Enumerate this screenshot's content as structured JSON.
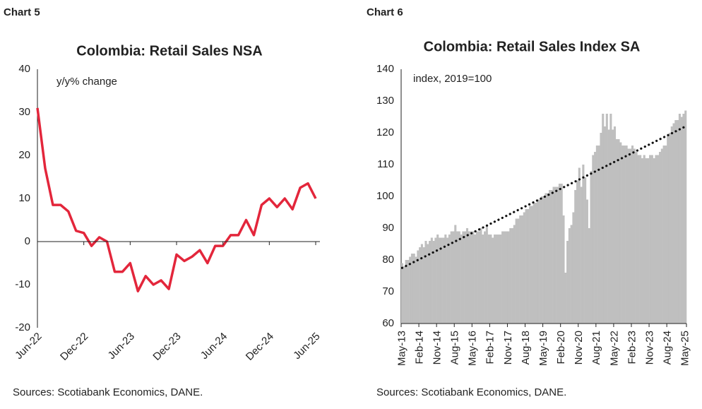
{
  "chart_data": [
    {
      "type": "line",
      "chart_label": "Chart 5",
      "title": "Colombia: Retail Sales NSA",
      "note": "y/y% change",
      "source": "Sources: Scotiabank Economics, DANE.",
      "categories": [
        "Jun-22",
        null,
        null,
        null,
        null,
        null,
        "Dec-22",
        null,
        null,
        null,
        null,
        null,
        "Jun-23",
        null,
        null,
        null,
        null,
        null,
        "Dec-23",
        null,
        null,
        null,
        null,
        null,
        "Jun-24",
        null,
        null,
        null,
        null,
        null,
        "Dec-24",
        null,
        null,
        null,
        null,
        null,
        "Jun-25"
      ],
      "series": [
        {
          "color": "#e3263b",
          "values": [
            31,
            17,
            8.5,
            8.5,
            7,
            2.5,
            2,
            -1,
            1,
            0,
            -7,
            -7,
            -5,
            -11.5,
            -8,
            -10,
            -9,
            -11,
            -3,
            -4.5,
            -3.5,
            -2,
            -5,
            -1,
            -1,
            1.5,
            1.5,
            5,
            1.5,
            8.5,
            10,
            8,
            10,
            7.5,
            12.5,
            13.5,
            10
          ]
        }
      ],
      "ylim": [
        -20,
        40
      ],
      "yticks": [
        -20,
        -10,
        0,
        10,
        20,
        30,
        40
      ],
      "grid": false
    },
    {
      "type": "bar",
      "chart_label": "Chart 6",
      "title": "Colombia: Retail Sales Index SA",
      "note": "index, 2019=100",
      "source": "Sources: Scotiabank Economics, DANE.",
      "categories": [
        "May-13",
        null,
        null,
        null,
        null,
        null,
        null,
        null,
        null,
        "Feb-14",
        null,
        null,
        null,
        null,
        null,
        null,
        null,
        null,
        "Nov-14",
        null,
        null,
        null,
        null,
        null,
        null,
        null,
        null,
        "Aug-15",
        null,
        null,
        null,
        null,
        null,
        null,
        null,
        null,
        "May-16",
        null,
        null,
        null,
        null,
        null,
        null,
        null,
        null,
        "Feb-17",
        null,
        null,
        null,
        null,
        null,
        null,
        null,
        null,
        "Nov-17",
        null,
        null,
        null,
        null,
        null,
        null,
        null,
        null,
        "Aug-18",
        null,
        null,
        null,
        null,
        null,
        null,
        null,
        null,
        "May-19",
        null,
        null,
        null,
        null,
        null,
        null,
        null,
        null,
        "Feb-20",
        null,
        null,
        null,
        null,
        null,
        null,
        null,
        null,
        "Nov-20",
        null,
        null,
        null,
        null,
        null,
        null,
        null,
        null,
        "Aug-21",
        null,
        null,
        null,
        null,
        null,
        null,
        null,
        null,
        "May-22",
        null,
        null,
        null,
        null,
        null,
        null,
        null,
        null,
        "Feb-23",
        null,
        null,
        null,
        null,
        null,
        null,
        null,
        null,
        "Nov-23",
        null,
        null,
        null,
        null,
        null,
        null,
        null,
        null,
        "Aug-24",
        null,
        null,
        null,
        null,
        null,
        null,
        null,
        null,
        "May-25"
      ],
      "series": [
        {
          "color": "#bfbfbf",
          "values": [
            79,
            78,
            80,
            80,
            81,
            82,
            82,
            81,
            83,
            84,
            85,
            84,
            86,
            85,
            86,
            87,
            86,
            87,
            88,
            87,
            87,
            87,
            88,
            87,
            88,
            89,
            89,
            91,
            89,
            89,
            88,
            89,
            89,
            90,
            89,
            89,
            89,
            88,
            89,
            89,
            90,
            88,
            89,
            91,
            88,
            88,
            87,
            88,
            88,
            88,
            88,
            89,
            89,
            89,
            89,
            90,
            90,
            91,
            93,
            93,
            94,
            94,
            95,
            96,
            96,
            97,
            97,
            98,
            98,
            99,
            99,
            100,
            100,
            101,
            101,
            102,
            102,
            103,
            103,
            103,
            104,
            104,
            94,
            76,
            86,
            90,
            91,
            95,
            102,
            105,
            109,
            103,
            110,
            106,
            99,
            90,
            108,
            113,
            114,
            116,
            116,
            120,
            126,
            122,
            126,
            121,
            126,
            121,
            122,
            118,
            118,
            117,
            116,
            116,
            116,
            115,
            115,
            116,
            115,
            114,
            113,
            113,
            112,
            113,
            112,
            112,
            113,
            113,
            112,
            113,
            113,
            114,
            115,
            116,
            116,
            119,
            120,
            122,
            123,
            124,
            124,
            126,
            125,
            126,
            127
          ]
        }
      ],
      "trend": [
        77.5,
        122
      ],
      "trend_color": "#111111",
      "ylim": [
        60,
        140
      ],
      "yticks": [
        60,
        70,
        80,
        90,
        100,
        110,
        120,
        130,
        140
      ],
      "grid": false
    }
  ]
}
